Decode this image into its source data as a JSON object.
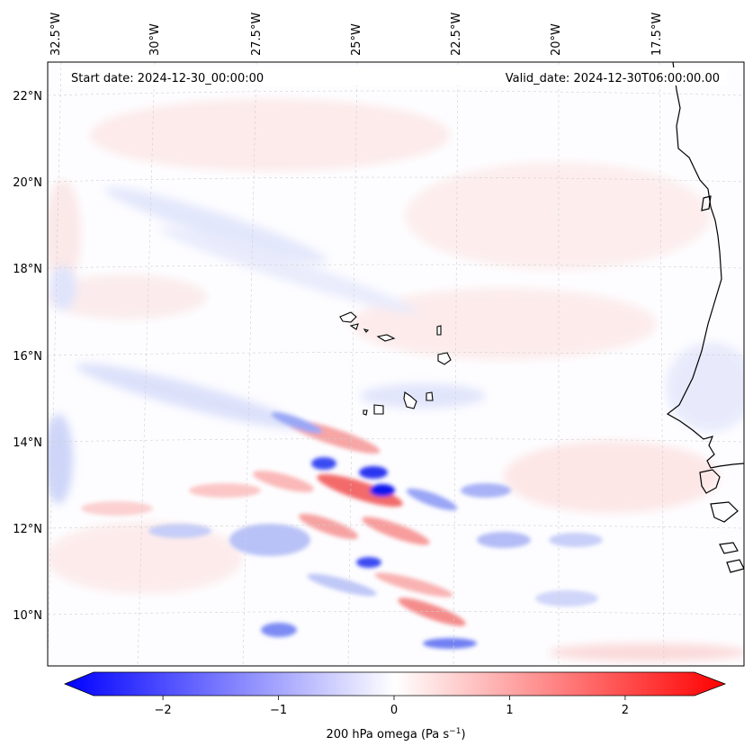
{
  "map": {
    "start_date_label": "Start date: 2024-12-30_00:00:00",
    "valid_date_label": "Valid_date: 2024-12-30T06:00:00.00",
    "longitude_labels": [
      "32.5°W",
      "30°W",
      "27.5°W",
      "25°W",
      "22.5°W",
      "20°W",
      "17.5°W"
    ],
    "latitude_labels": [
      "22°N",
      "20°N",
      "18°N",
      "16°N",
      "14°N",
      "12°N",
      "10°N"
    ]
  },
  "colorbar": {
    "label": "200 hPa omega (Pa s",
    "label_exponent": "−1",
    "label_close": ")",
    "tick_labels": [
      "−2",
      "−1",
      "0",
      "1",
      "2"
    ],
    "tick_values": [
      -2,
      -1,
      0,
      1,
      2
    ],
    "range": [
      -2.6,
      2.6
    ],
    "colors": {
      "negative": "#0000ff",
      "neutral": "#ffffff",
      "positive": "#ff0000"
    }
  }
}
